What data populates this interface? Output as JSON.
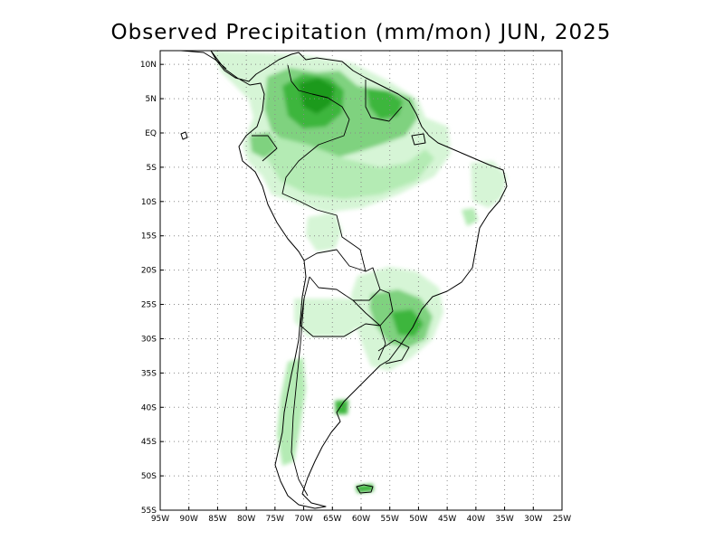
{
  "title": "Observed Precipitation (mm/mon) JUN, 2025",
  "colors": {
    "light": "#d6f5d6",
    "lightmid": "#b4ebb4",
    "mid": "#7fd27f",
    "strong": "#3cb63c",
    "deep": "#1e9a1e",
    "outline": "#000000",
    "grid": "#8a8a8a"
  },
  "lat_ticks": [
    {
      "lat": 10,
      "label": "10N"
    },
    {
      "lat": 5,
      "label": "5N"
    },
    {
      "lat": 0,
      "label": "EQ"
    },
    {
      "lat": -5,
      "label": "5S"
    },
    {
      "lat": -10,
      "label": "10S"
    },
    {
      "lat": -15,
      "label": "15S"
    },
    {
      "lat": -20,
      "label": "20S"
    },
    {
      "lat": -25,
      "label": "25S"
    },
    {
      "lat": -30,
      "label": "30S"
    },
    {
      "lat": -35,
      "label": "35S"
    },
    {
      "lat": -40,
      "label": "40S"
    },
    {
      "lat": -45,
      "label": "45S"
    },
    {
      "lat": -50,
      "label": "50S"
    },
    {
      "lat": -55,
      "label": "55S"
    }
  ],
  "lon_ticks": [
    {
      "lon": -95,
      "label": "95W"
    },
    {
      "lon": -90,
      "label": "90W"
    },
    {
      "lon": -85,
      "label": "85W"
    },
    {
      "lon": -80,
      "label": "80W"
    },
    {
      "lon": -75,
      "label": "75W"
    },
    {
      "lon": -70,
      "label": "70W"
    },
    {
      "lon": -65,
      "label": "65W"
    },
    {
      "lon": -60,
      "label": "60W"
    },
    {
      "lon": -55,
      "label": "55W"
    },
    {
      "lon": -50,
      "label": "50W"
    },
    {
      "lon": -45,
      "label": "45W"
    },
    {
      "lon": -40,
      "label": "40W"
    },
    {
      "lon": -35,
      "label": "35W"
    },
    {
      "lon": -30,
      "label": "30W"
    },
    {
      "lon": -25,
      "label": "25W"
    }
  ],
  "extent": {
    "lon_min": -95,
    "lon_max": -25,
    "lat_min": -55,
    "lat_max": 12
  }
}
